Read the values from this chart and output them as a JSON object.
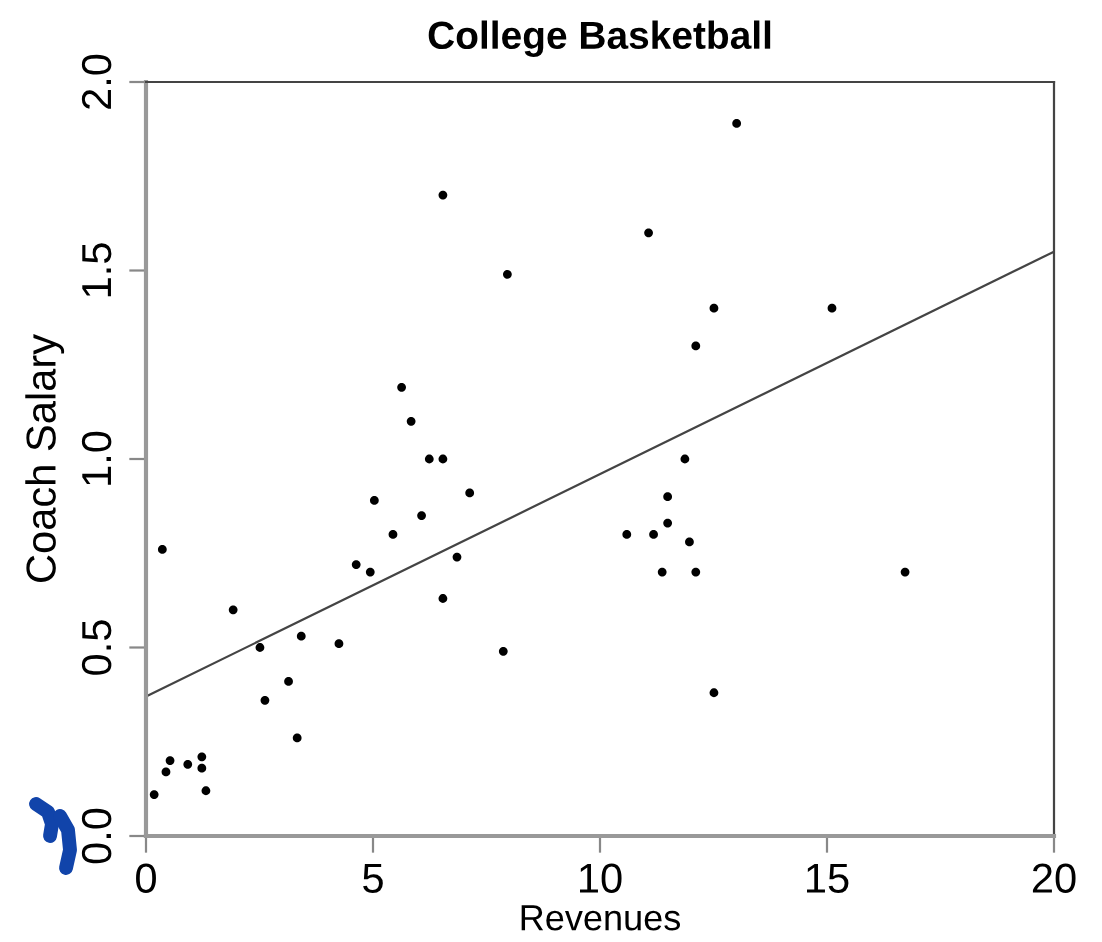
{
  "chart_data": {
    "type": "scatter",
    "title": "College Basketball",
    "xlabel": "Revenues",
    "ylabel": "Coach Salary",
    "xlim": [
      0,
      20
    ],
    "ylim": [
      0,
      2
    ],
    "xticks": [
      0,
      5,
      10,
      15,
      20
    ],
    "yticks": [
      {
        "value": 0,
        "label": "0.0"
      },
      {
        "value": 0.5,
        "label": "0.5"
      },
      {
        "value": 1,
        "label": "1.0"
      },
      {
        "value": 1.5,
        "label": "1.5"
      },
      {
        "value": 2,
        "label": "2.0"
      }
    ],
    "grid": false,
    "legend": false,
    "series": [
      {
        "marker": "circle",
        "color": "#000000",
        "x": [
          0.18,
          0.36,
          0.44,
          0.53,
          0.92,
          1.23,
          1.23,
          1.32,
          1.92,
          2.51,
          2.62,
          3.14,
          3.33,
          3.42,
          4.25,
          4.63,
          4.94,
          5.03,
          5.44,
          6.07,
          6.54,
          6.85,
          7.13,
          7.87,
          6.54,
          7.96,
          5.63,
          5.84,
          6.24,
          6.54,
          13.01,
          11.07,
          12.51,
          15.11,
          12.11,
          11.87,
          11.49,
          10.59,
          11.18,
          11.49,
          11.97,
          11.37,
          12.11,
          16.72,
          12.51
        ],
        "values": [
          0.11,
          0.76,
          0.17,
          0.2,
          0.19,
          0.21,
          0.18,
          0.12,
          0.6,
          0.5,
          0.36,
          0.41,
          0.26,
          0.53,
          0.51,
          0.72,
          0.7,
          0.89,
          0.8,
          0.85,
          0.63,
          0.74,
          0.91,
          0.49,
          1.7,
          1.49,
          1.19,
          1.1,
          1.0,
          1.0,
          1.89,
          1.6,
          1.4,
          1.4,
          1.3,
          1.0,
          0.9,
          0.8,
          0.8,
          0.83,
          0.78,
          0.7,
          0.7,
          0.7,
          0.38
        ]
      },
      {
        "type": "line",
        "marker": "none",
        "color": "#444444",
        "line_style": "solid",
        "x": [
          0,
          20
        ],
        "values": [
          0.37,
          1.55
        ]
      }
    ]
  }
}
